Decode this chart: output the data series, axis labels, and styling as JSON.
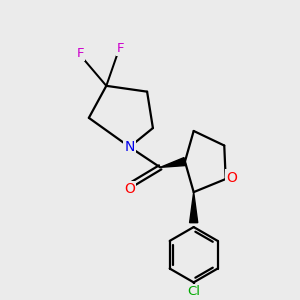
{
  "background_color": "#ebebeb",
  "bond_color": "#000000",
  "bond_width": 1.6,
  "atom_colors": {
    "F": "#cc00cc",
    "N": "#0000ee",
    "O_carbonyl": "#ff0000",
    "O_ring": "#ff0000",
    "Cl": "#00aa00",
    "C": "#000000"
  },
  "scale": 10
}
